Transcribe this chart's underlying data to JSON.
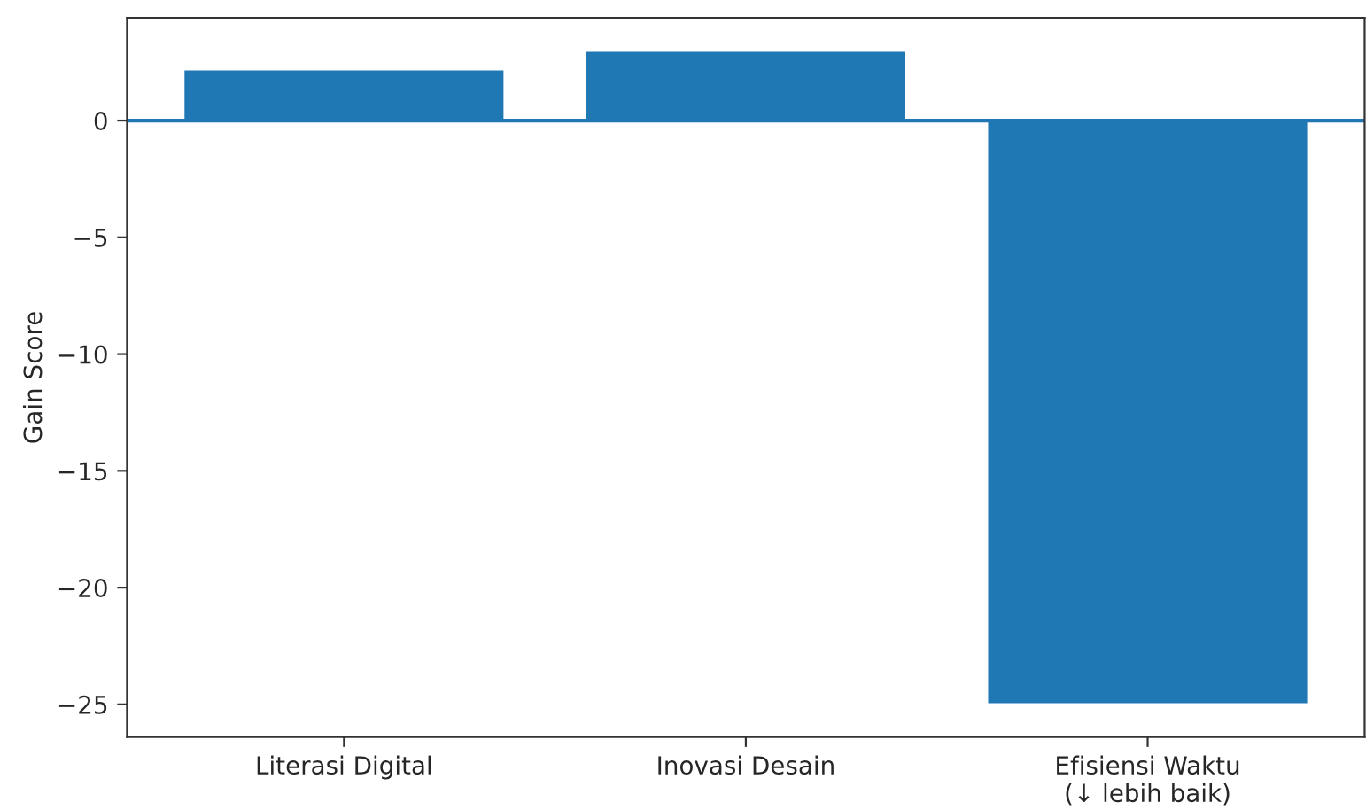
{
  "chart_data": {
    "type": "bar",
    "ylabel": "Gain Score",
    "categories": [
      "Literasi Digital",
      "Inovasi Desain",
      "Efisiensi Waktu\n(↓ lebih baik)"
    ],
    "values": [
      2.2,
      3.0,
      -25
    ],
    "color": "#1f77b4",
    "ylim": [
      -26.4,
      4.4
    ],
    "yticks": [
      {
        "value": -25,
        "label": "−25"
      },
      {
        "value": -20,
        "label": "−20"
      },
      {
        "value": -15,
        "label": "−15"
      },
      {
        "value": -10,
        "label": "−10"
      },
      {
        "value": -5,
        "label": "−5"
      },
      0
    ],
    "ref_lines": [
      {
        "axis": "y",
        "value": 0,
        "color": "#1f77b4",
        "line_style": "solid"
      }
    ],
    "grid": false,
    "legend": false
  }
}
